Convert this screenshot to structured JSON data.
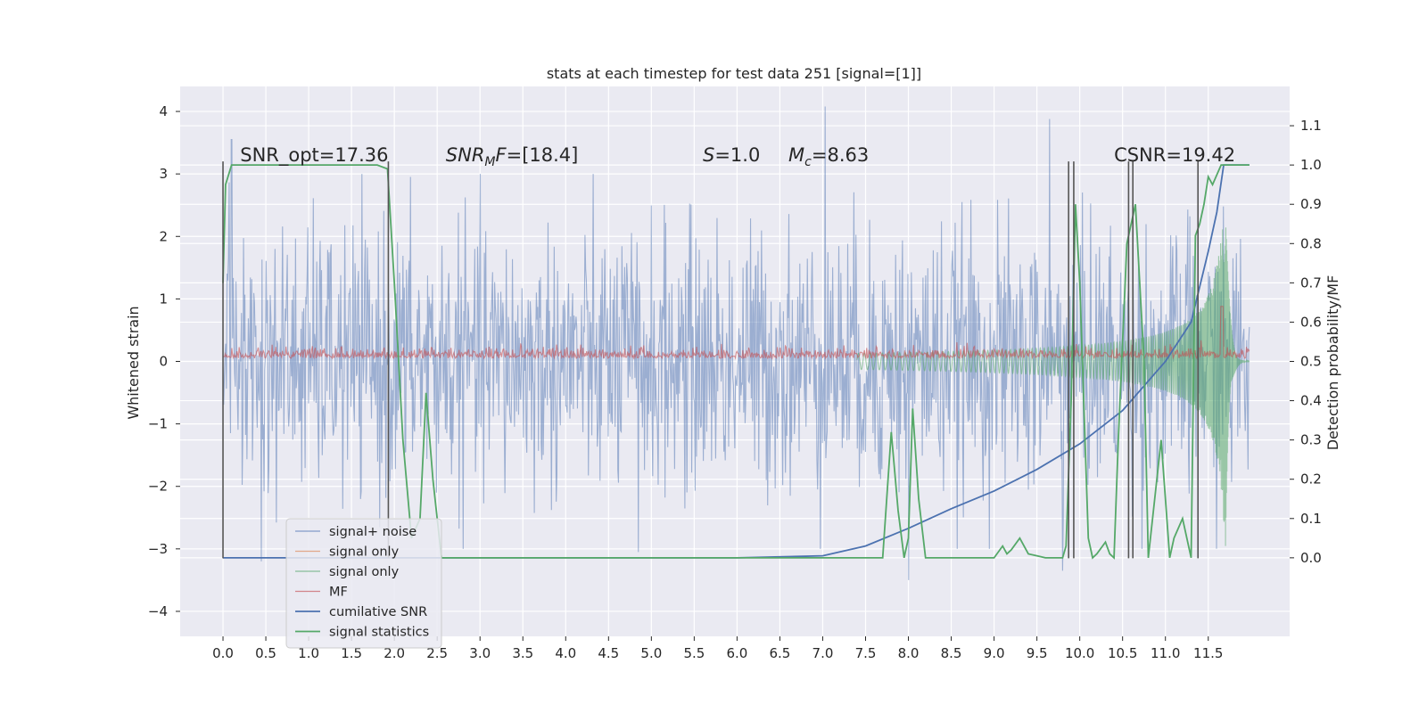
{
  "chart_data": {
    "type": "line",
    "title": "stats at each timestep for test data 251 [signal=[1]]",
    "xlabel": "",
    "ylabel": "Whitened strain",
    "y2label": "Detection probability/MF",
    "xlim": [
      -0.5,
      12.45
    ],
    "ylim": [
      -4.4,
      4.4
    ],
    "y2lim": [
      -0.2,
      1.2
    ],
    "x_ticks": [
      0.0,
      0.5,
      1.0,
      1.5,
      2.0,
      2.5,
      3.0,
      3.5,
      4.0,
      4.5,
      5.0,
      5.5,
      6.0,
      6.5,
      7.0,
      7.5,
      8.0,
      8.5,
      9.0,
      9.5,
      10.0,
      10.5,
      11.0,
      11.5
    ],
    "x_tick_labels": [
      "0.0",
      "0.5",
      "1.0",
      "1.5",
      "2.0",
      "2.5",
      "3.0",
      "3.5",
      "4.0",
      "4.5",
      "5.0",
      "5.5",
      "6.0",
      "6.5",
      "7.0",
      "7.5",
      "8.0",
      "8.5",
      "9.0",
      "9.5",
      "10.0",
      "10.5",
      "11.0",
      "11.5"
    ],
    "y_ticks": [
      -4,
      -3,
      -2,
      -1,
      0,
      1,
      2,
      3,
      4
    ],
    "y_tick_labels": [
      "−4",
      "−3",
      "−2",
      "−1",
      "0",
      "1",
      "2",
      "3",
      "4"
    ],
    "y2_ticks": [
      0.0,
      0.1,
      0.2,
      0.3,
      0.4,
      0.5,
      0.6,
      0.7,
      0.8,
      0.9,
      1.0,
      1.1
    ],
    "y2_tick_labels": [
      "0.0",
      "0.1",
      "0.2",
      "0.3",
      "0.4",
      "0.5",
      "0.6",
      "0.7",
      "0.8",
      "0.9",
      "1.0",
      "1.1"
    ],
    "grid": true,
    "legend_position": "lower-left",
    "annotations": [
      {
        "x": 0.2,
        "y": 3.2,
        "text": "SNR_opt=17.36"
      },
      {
        "x": 2.6,
        "y": 3.2,
        "text": "SNR",
        "sub": "M",
        "after": "F=[18.4]",
        "italic": true
      },
      {
        "x": 5.6,
        "y": 3.2,
        "text": "S",
        "after": "=1.0",
        "italic": true
      },
      {
        "x": 6.6,
        "y": 3.2,
        "text": "M",
        "sub": "c",
        "after": "=8.63",
        "italic": true
      },
      {
        "x": 10.4,
        "y": 3.2,
        "text": "CSNR=19.42"
      }
    ],
    "series": [
      {
        "name": "signal+ noise",
        "color": "#4c72b0",
        "axis": "left",
        "style": "noise",
        "t_end": 11.98,
        "amplitude_std": 1.0,
        "spike_peaks": [
          [
            0.1,
            3.55
          ],
          [
            7.03,
            4.08
          ],
          [
            9.65,
            3.88
          ],
          [
            8.0,
            -3.5
          ],
          [
            0.45,
            -3.2
          ],
          [
            4.85,
            -3.05
          ],
          [
            9.8,
            -3.35
          ]
        ]
      },
      {
        "name": "signal only",
        "color": "#dd8452",
        "axis": "left",
        "style": "hidden"
      },
      {
        "name": "signal only",
        "color": "#55a868",
        "axis": "left",
        "style": "chirp",
        "t_start": 7.4,
        "t_merge": 11.7,
        "t_end": 11.98,
        "max_amplitude": 3.2
      },
      {
        "name": "MF",
        "color": "#c44e52",
        "axis": "left",
        "style": "mf",
        "t_end": 11.98,
        "base": 0.08,
        "peak": [
          11.66,
          1.0
        ]
      },
      {
        "name": "cumilative SNR",
        "color": "#4c72b0",
        "axis": "right",
        "x": [
          0.0,
          6.0,
          7.0,
          7.5,
          8.0,
          8.5,
          9.0,
          9.5,
          10.0,
          10.5,
          11.0,
          11.3,
          11.5,
          11.6,
          11.68,
          11.98
        ],
        "y": [
          0.0,
          0.0,
          0.005,
          0.03,
          0.075,
          0.125,
          0.17,
          0.225,
          0.29,
          0.375,
          0.5,
          0.6,
          0.78,
          0.88,
          1.0,
          1.0
        ]
      },
      {
        "name": "signal statistics",
        "color": "#55a868",
        "axis": "right",
        "x": [
          0.0,
          0.03,
          0.1,
          0.3,
          1.0,
          1.5,
          1.8,
          1.92,
          2.0,
          2.1,
          2.2,
          2.3,
          2.37,
          2.45,
          2.55,
          2.7,
          3.5,
          7.0,
          7.7,
          7.8,
          7.88,
          7.95,
          8.0,
          8.05,
          8.12,
          8.2,
          9.0,
          9.1,
          9.15,
          9.2,
          9.3,
          9.4,
          9.5,
          9.6,
          9.7,
          9.8,
          9.84,
          9.9,
          9.95,
          10.0,
          10.1,
          10.15,
          10.2,
          10.3,
          10.35,
          10.4,
          10.45,
          10.55,
          10.65,
          10.75,
          10.8,
          10.9,
          10.95,
          11.0,
          11.05,
          11.1,
          11.2,
          11.3,
          11.35,
          11.4,
          11.45,
          11.5,
          11.55,
          11.65,
          11.98
        ],
        "y": [
          0.7,
          0.95,
          1.0,
          1.0,
          1.0,
          1.0,
          1.0,
          0.99,
          0.7,
          0.3,
          0.05,
          0.1,
          0.42,
          0.2,
          0.0,
          0.0,
          0.0,
          0.0,
          0.0,
          0.32,
          0.12,
          0.0,
          0.05,
          0.38,
          0.15,
          0.0,
          0.0,
          0.03,
          0.01,
          0.02,
          0.05,
          0.01,
          0.005,
          0.0,
          0.0,
          0.0,
          0.03,
          0.4,
          0.9,
          0.7,
          0.05,
          0.0,
          0.01,
          0.04,
          0.01,
          0.0,
          0.3,
          0.8,
          0.9,
          0.5,
          0.0,
          0.2,
          0.3,
          0.15,
          0.0,
          0.05,
          0.1,
          0.0,
          0.82,
          0.85,
          0.9,
          0.97,
          0.95,
          1.0,
          1.0
        ]
      }
    ],
    "vertical_lines": [
      0.0,
      1.93,
      9.87,
      9.93,
      10.57,
      10.62,
      11.38
    ]
  }
}
